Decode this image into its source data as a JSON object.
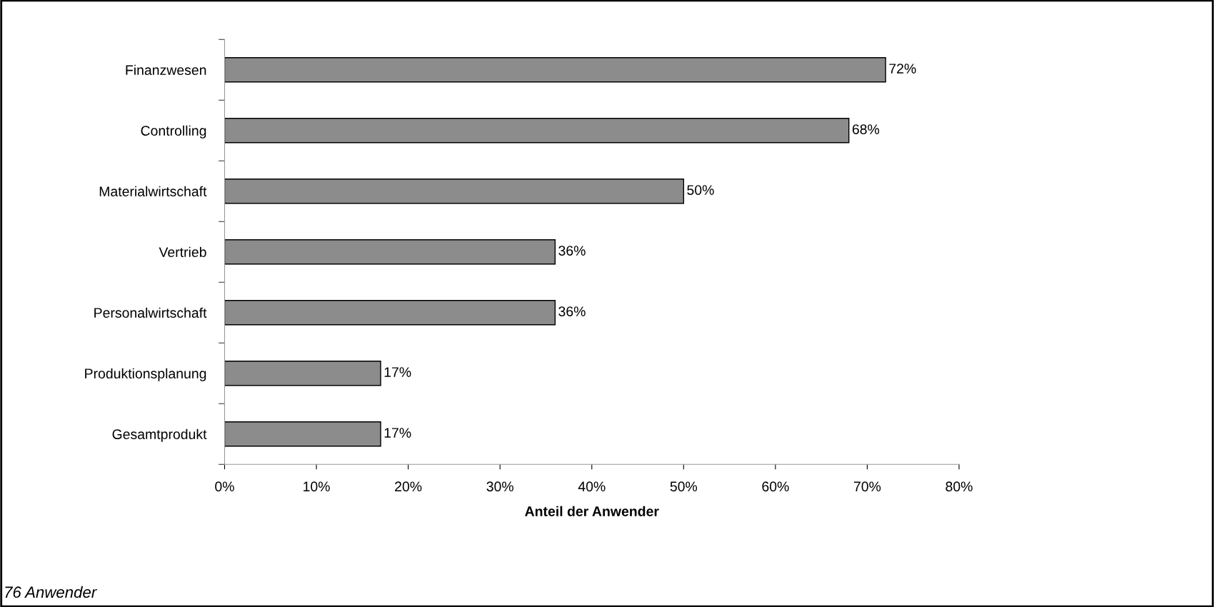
{
  "chart_data": {
    "type": "bar",
    "orientation": "horizontal",
    "categories": [
      "Finanzwesen",
      "Controlling",
      "Materialwirtschaft",
      "Vertrieb",
      "Personalwirtschaft",
      "Produktionsplanung",
      "Gesamtprodukt"
    ],
    "values": [
      72,
      68,
      50,
      36,
      36,
      17,
      17
    ],
    "value_labels": [
      "72%",
      "68%",
      "50%",
      "36%",
      "36%",
      "17%",
      "17%"
    ],
    "color": "#8c8c8c",
    "xlabel": "Anteil der Anwender",
    "xlim": [
      0,
      80
    ],
    "xticks": [
      {
        "value": 0,
        "label": "0%"
      },
      {
        "value": 10,
        "label": "10%"
      },
      {
        "value": 20,
        "label": "20%"
      },
      {
        "value": 30,
        "label": "30%"
      },
      {
        "value": 40,
        "label": "40%"
      },
      {
        "value": 50,
        "label": "50%"
      },
      {
        "value": 60,
        "label": "60%"
      },
      {
        "value": 70,
        "label": "70%"
      },
      {
        "value": 80,
        "label": "80%"
      }
    ],
    "grid": false,
    "legend": false,
    "annotations": [
      "76 Anwender"
    ]
  }
}
